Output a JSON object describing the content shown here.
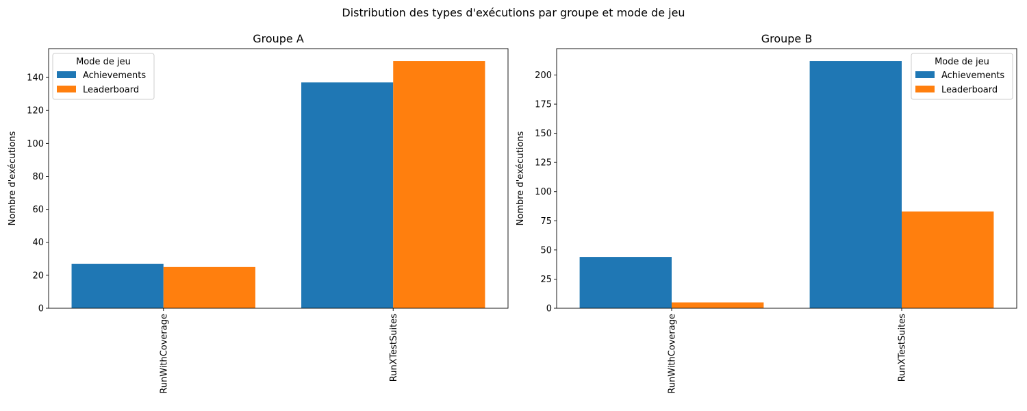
{
  "figure_title": "Distribution des types d'exécutions par groupe et mode de jeu",
  "chart_data": [
    {
      "type": "bar",
      "title": "Groupe A",
      "xlabel": "",
      "ylabel": "Nombre d'exécutions",
      "categories": [
        "RunWithCoverage",
        "RunXTestSuites"
      ],
      "series": [
        {
          "name": "Achievements",
          "values": [
            27,
            137
          ],
          "color": "#1f77b4"
        },
        {
          "name": "Leaderboard",
          "values": [
            25,
            150
          ],
          "color": "#ff7f0e"
        }
      ],
      "ylim": [
        0,
        157.5
      ],
      "yticks": [
        0,
        20,
        40,
        60,
        80,
        100,
        120,
        140
      ],
      "legend": {
        "title": "Mode de jeu",
        "placement": "upper-left"
      },
      "grid": false
    },
    {
      "type": "bar",
      "title": "Groupe B",
      "xlabel": "",
      "ylabel": "Nombre d'exécutions",
      "categories": [
        "RunWithCoverage",
        "RunXTestSuites"
      ],
      "series": [
        {
          "name": "Achievements",
          "values": [
            44,
            212
          ],
          "color": "#1f77b4"
        },
        {
          "name": "Leaderboard",
          "values": [
            5,
            83
          ],
          "color": "#ff7f0e"
        }
      ],
      "ylim": [
        0,
        222.6
      ],
      "yticks": [
        0,
        25,
        50,
        75,
        100,
        125,
        150,
        175,
        200
      ],
      "legend": {
        "title": "Mode de jeu",
        "placement": "upper-right"
      },
      "grid": false
    }
  ]
}
